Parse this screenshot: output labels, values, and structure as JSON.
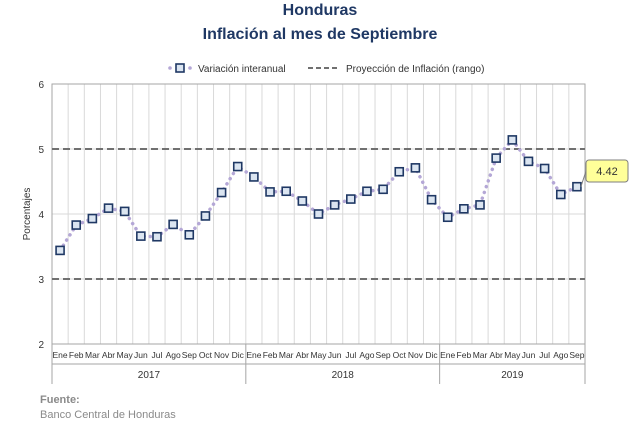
{
  "title": "Honduras",
  "subtitle": "Inflación al mes de Septiembre",
  "footer": {
    "source_label": "Fuente:",
    "source_text": "Banco Central de Honduras"
  },
  "colors": {
    "series": "#1f3864",
    "marker_fill": "#dbe5f1",
    "dots": "#b4a7d6",
    "projection": "#707070",
    "grid": "#d9d9d9",
    "callout_fill": "#ffff99",
    "title": "#1f3864"
  },
  "chart_data": {
    "type": "line",
    "title": "",
    "xlabel": "",
    "ylabel": "Porcentajes",
    "ylim": [
      2,
      6
    ],
    "yticks": [
      "2",
      "3",
      "4",
      "5",
      "6"
    ],
    "grid": true,
    "legend_position": "top",
    "categories": [
      "Ene",
      "Feb",
      "Mar",
      "Abr",
      "May",
      "Jun",
      "Jul",
      "Ago",
      "Sep",
      "Oct",
      "Nov",
      "Dic",
      "Ene",
      "Feb",
      "Mar",
      "Abr",
      "May",
      "Jun",
      "Jul",
      "Ago",
      "Sep",
      "Oct",
      "Nov",
      "Dic",
      "Ene",
      "Feb",
      "Mar",
      "Abr",
      "May",
      "Jun",
      "Jul",
      "Ago",
      "Sep"
    ],
    "years": [
      {
        "label": "2017",
        "months": 12
      },
      {
        "label": "2018",
        "months": 12
      },
      {
        "label": "2019",
        "months": 9
      }
    ],
    "series": [
      {
        "name": "Variación interanual",
        "values": [
          3.44,
          3.83,
          3.93,
          4.09,
          4.04,
          3.66,
          3.65,
          3.84,
          3.68,
          3.97,
          4.33,
          4.73,
          4.57,
          4.34,
          4.35,
          4.2,
          4.0,
          4.14,
          4.23,
          4.35,
          4.38,
          4.65,
          4.71,
          4.22,
          3.95,
          4.08,
          4.14,
          4.86,
          5.14,
          4.81,
          4.7,
          4.3,
          4.42
        ]
      }
    ],
    "projection": {
      "name": "Proyección de Inflación (rango)",
      "lower": 3,
      "upper": 5
    },
    "callout": "4.42"
  }
}
